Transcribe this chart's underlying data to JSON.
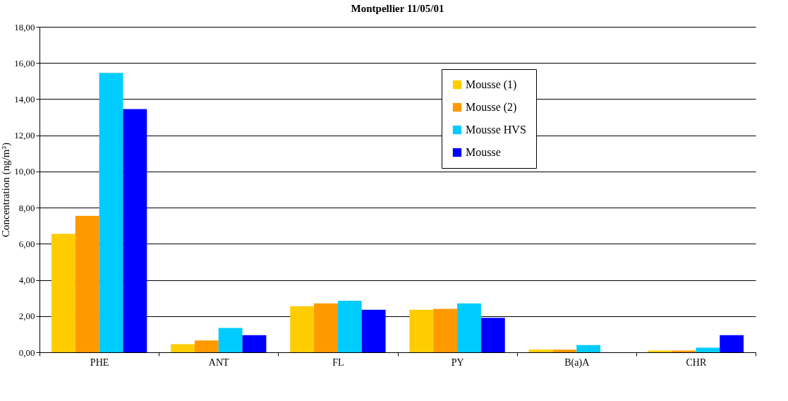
{
  "chart_data": {
    "type": "bar",
    "title": "Montpellier 11/05/01",
    "ylabel": "Concentration (ng/m³)",
    "categories": [
      "PHE",
      "ANT",
      "FL",
      "PY",
      "B(a)A",
      "CHR"
    ],
    "series": [
      {
        "name": "Mousse (1)",
        "color": "#ffcc00",
        "values": [
          6.55,
          0.45,
          2.55,
          2.35,
          0.15,
          0.1
        ]
      },
      {
        "name": "Mousse (2)",
        "color": "#ff9900",
        "values": [
          7.55,
          0.65,
          2.7,
          2.4,
          0.15,
          0.1
        ]
      },
      {
        "name": "Mousse HVS",
        "color": "#00ccff",
        "values": [
          15.45,
          1.35,
          2.85,
          2.7,
          0.4,
          0.25
        ]
      },
      {
        "name": "Mousse",
        "color": "#0000ff",
        "values": [
          13.45,
          0.95,
          2.35,
          1.9,
          0,
          0.95
        ]
      }
    ],
    "ylim": [
      0,
      18
    ],
    "yticks": [
      {
        "value": 0,
        "label": "0,00"
      },
      {
        "value": 2,
        "label": "2,00"
      },
      {
        "value": 4,
        "label": "4,00"
      },
      {
        "value": 6,
        "label": "6,00"
      },
      {
        "value": 8,
        "label": "8,00"
      },
      {
        "value": 10,
        "label": "10,00"
      },
      {
        "value": 12,
        "label": "12,00"
      },
      {
        "value": 14,
        "label": "14,00"
      },
      {
        "value": 16,
        "label": "16,00"
      },
      {
        "value": 18,
        "label": "18,00"
      }
    ],
    "grid": "y",
    "legend": "top right"
  }
}
